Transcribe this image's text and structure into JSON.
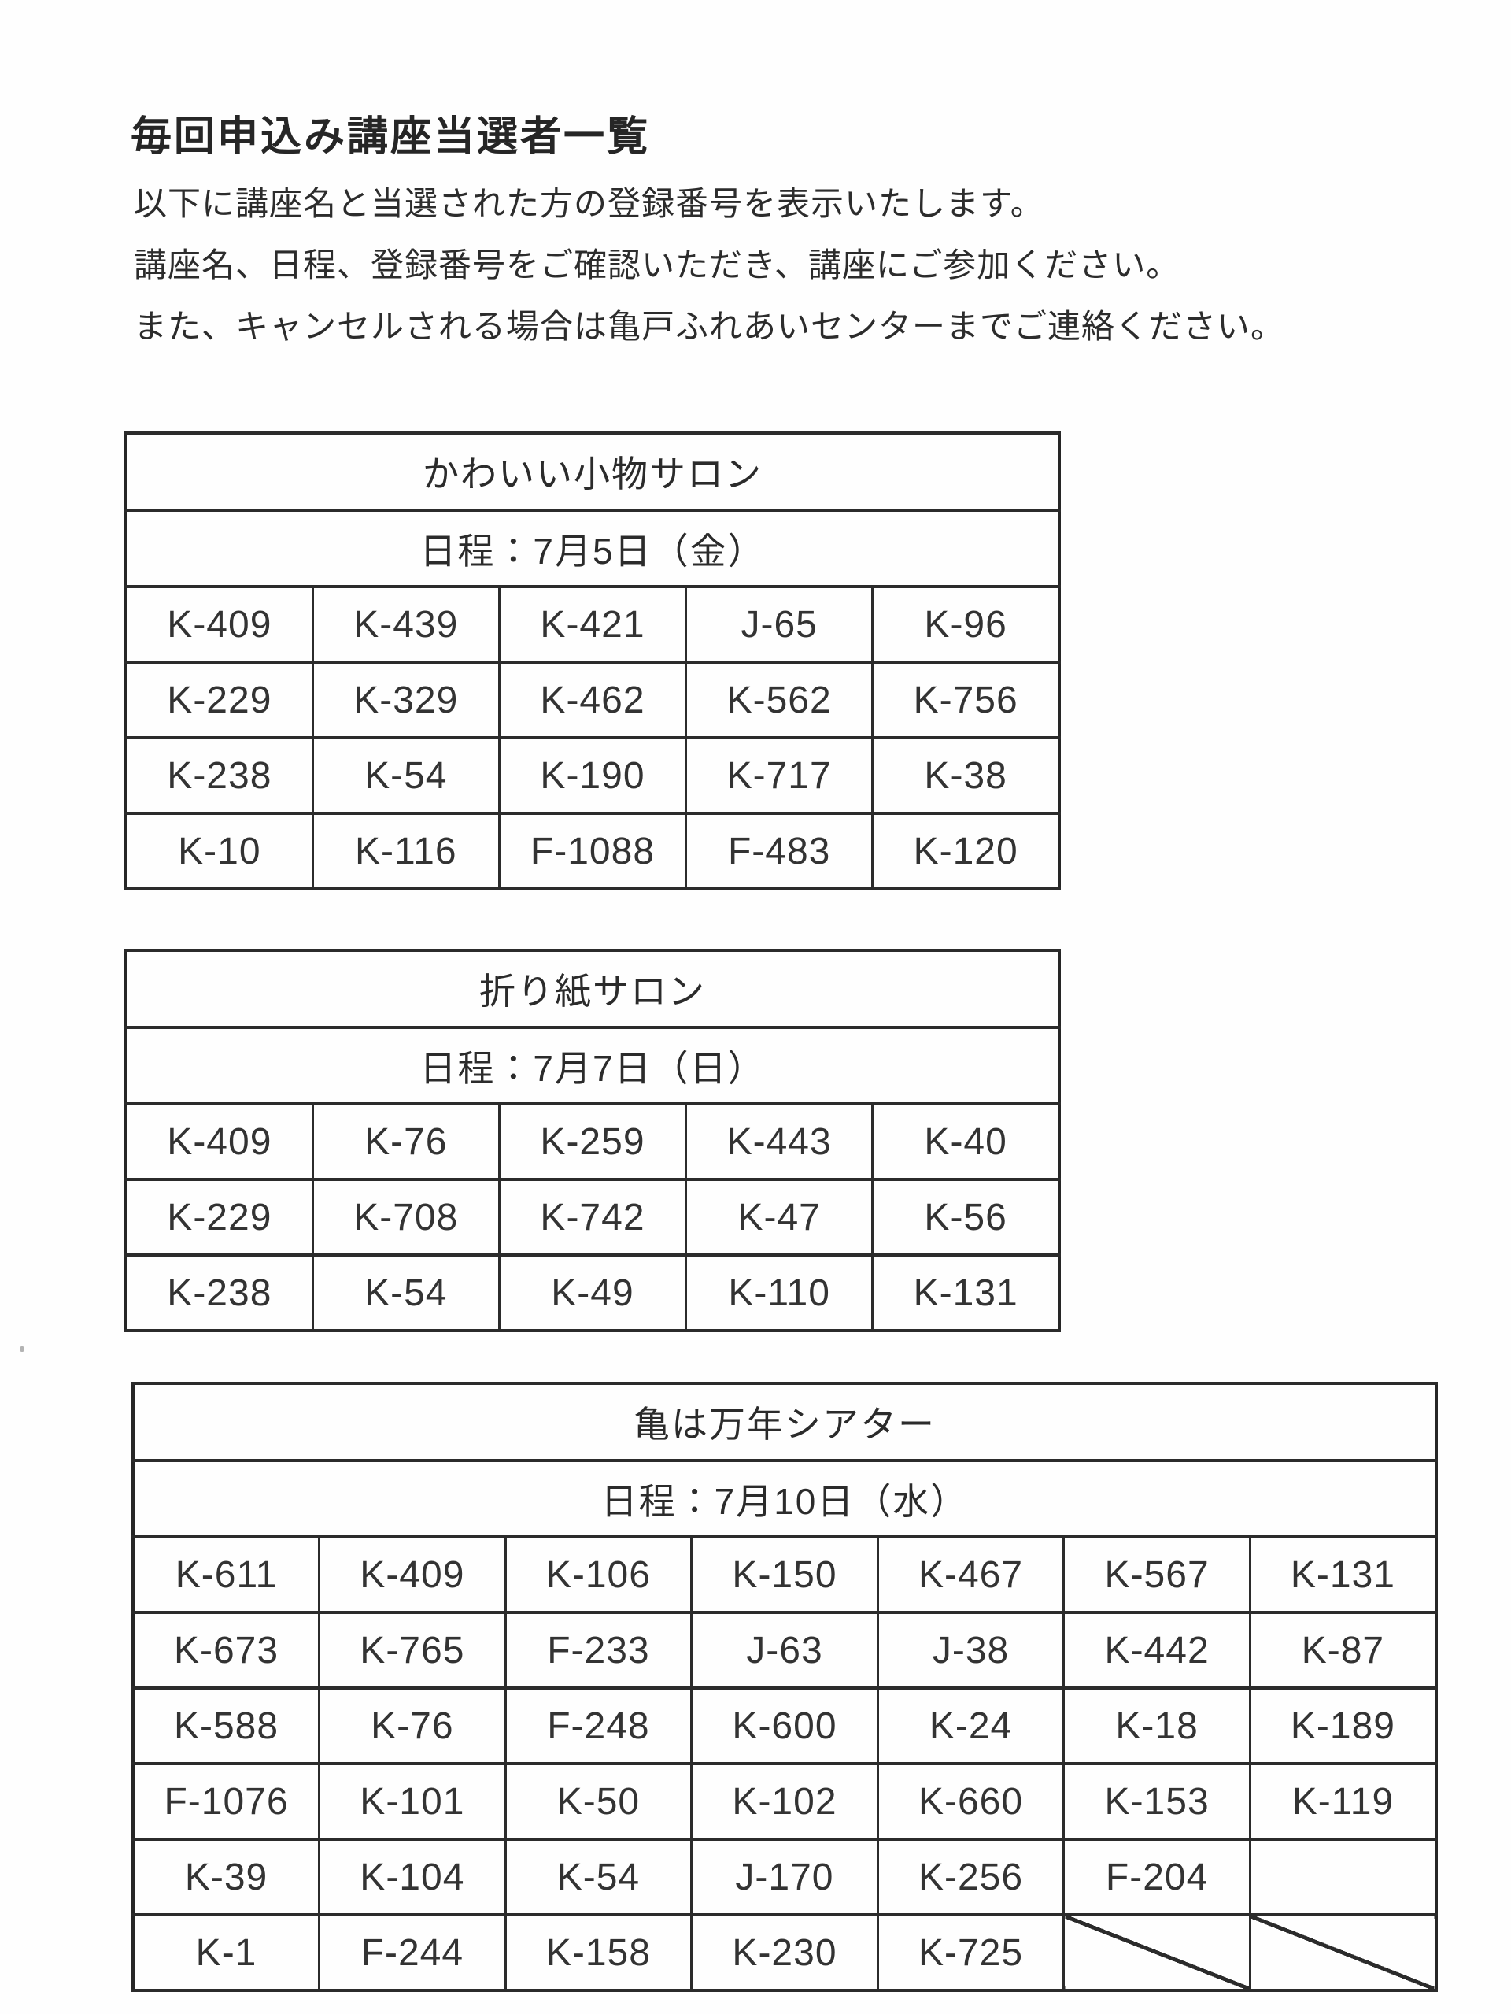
{
  "page": {
    "title": "毎回申込み講座当選者一覧",
    "intro_lines": [
      "以下に講座名と当選された方の登録番号を表示いたします。",
      "講座名、日程、登録番号をご確認いただき、講座にご参加ください。",
      "また、キャンセルされる場合は亀戸ふれあいセンターまでご連絡ください。"
    ]
  },
  "colors": {
    "background": "#fefefe",
    "text": "#2e2e2e",
    "table_border": "#2b2b2b"
  },
  "tables": [
    {
      "title": "かわいい小物サロン",
      "schedule": "日程：7月5日（金）",
      "columns": 5,
      "rows": [
        [
          "K-409",
          "K-439",
          "K-421",
          "J-65",
          "K-96"
        ],
        [
          "K-229",
          "K-329",
          "K-462",
          "K-562",
          "K-756"
        ],
        [
          "K-238",
          "K-54",
          "K-190",
          "K-717",
          "K-38"
        ],
        [
          "K-10",
          "K-116",
          "F-1088",
          "F-483",
          "K-120"
        ]
      ]
    },
    {
      "title": "折り紙サロン",
      "schedule": "日程：7月7日（日）",
      "columns": 5,
      "rows": [
        [
          "K-409",
          "K-76",
          "K-259",
          "K-443",
          "K-40"
        ],
        [
          "K-229",
          "K-708",
          "K-742",
          "K-47",
          "K-56"
        ],
        [
          "K-238",
          "K-54",
          "K-49",
          "K-110",
          "K-131"
        ]
      ]
    },
    {
      "title": "亀は万年シアター",
      "schedule": "日程：7月10日（水）",
      "columns": 7,
      "rows": [
        [
          "K-611",
          "K-409",
          "K-106",
          "K-150",
          "K-467",
          "K-567",
          "K-131"
        ],
        [
          "K-673",
          "K-765",
          "F-233",
          "J-63",
          "J-38",
          "K-442",
          "K-87"
        ],
        [
          "K-588",
          "K-76",
          "F-248",
          "K-600",
          "K-24",
          "K-18",
          "K-189"
        ],
        [
          "F-1076",
          "K-101",
          "K-50",
          "K-102",
          "K-660",
          "K-153",
          "K-119"
        ],
        [
          "K-39",
          "K-104",
          "K-54",
          "J-170",
          "K-256",
          "F-204",
          ""
        ],
        [
          "K-1",
          "F-244",
          "K-158",
          "K-230",
          "K-725",
          null,
          null
        ]
      ]
    }
  ]
}
